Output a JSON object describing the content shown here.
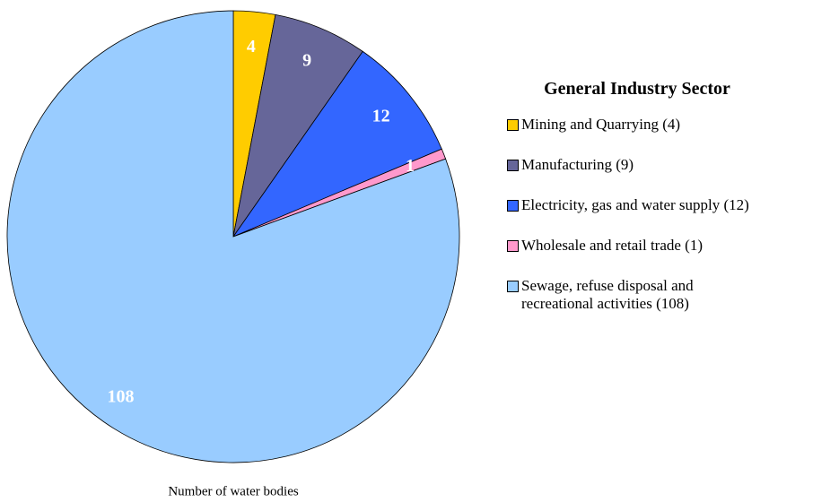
{
  "chart_data": {
    "type": "pie",
    "xlabel": "Number of water bodies",
    "legend_title": "General Industry Sector",
    "categories": [
      "Mining and Quarrying  (4)",
      "Manufacturing  (9)",
      "Electricity, gas and water supply  (12)",
      "Wholesale and retail trade  (1)",
      "Sewage, refuse disposal and\nrecreational activities (108)"
    ],
    "values": [
      4,
      9,
      12,
      1,
      108
    ],
    "colors": [
      "#ffcc00",
      "#666699",
      "#3366ff",
      "#ff99cc",
      "#99ccff"
    ],
    "legend": "right"
  }
}
